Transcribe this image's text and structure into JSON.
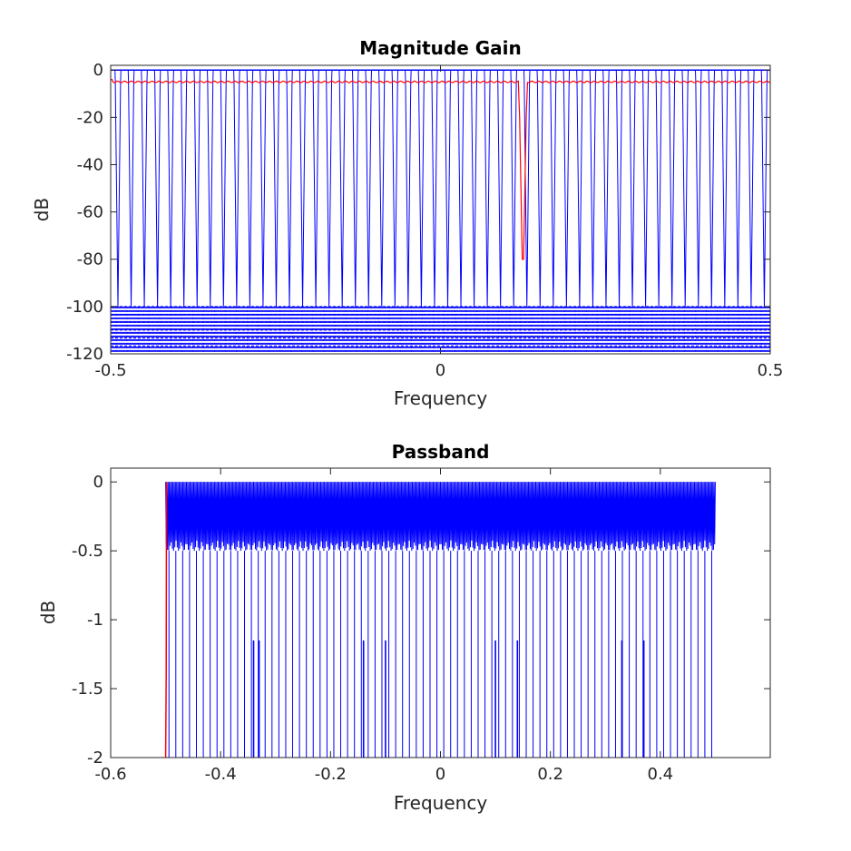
{
  "chart_data": [
    {
      "type": "line",
      "title": "Magnitude Gain",
      "xlabel": "Frequency",
      "ylabel": "dB",
      "xlim": [
        -0.5,
        0.5
      ],
      "ylim": [
        -120,
        2
      ],
      "xticks": [
        -0.5,
        0,
        0.5
      ],
      "xtick_labels": [
        "-0.5",
        "0",
        "0.5"
      ],
      "yticks": [
        0,
        -20,
        -40,
        -60,
        -80,
        -100,
        -120
      ],
      "ytick_labels": [
        "0",
        "-20",
        "-40",
        "-60",
        "-80",
        "-100",
        "-120"
      ],
      "grid": false,
      "series": [
        {
          "color": "#0000ff",
          "style": "comb of deep notches",
          "values": {
            "notch_frequencies": [
              -0.489,
              -0.469,
              -0.449,
              -0.429,
              -0.409,
              -0.389,
              -0.369,
              -0.349,
              -0.329,
              -0.309,
              -0.289,
              -0.269,
              -0.249,
              -0.229,
              -0.209,
              -0.189,
              -0.169,
              -0.149,
              -0.129,
              -0.109,
              -0.089,
              -0.069,
              -0.049,
              -0.029,
              -0.009,
              0.011,
              0.031,
              0.051,
              0.071,
              0.091,
              0.111,
              0.131,
              0.151,
              0.171,
              0.191,
              0.211,
              0.231,
              0.251,
              0.271,
              0.291,
              0.311,
              0.331,
              0.351,
              0.371,
              0.391,
              0.411,
              0.431,
              0.451,
              0.471,
              0.491
            ],
            "peak_db": 0,
            "notch_db": -100,
            "floor_range_db": [
              -120,
              -100
            ]
          }
        },
        {
          "color": "#ff0000",
          "style": "flat response with single notch",
          "values": {
            "level_db": -5,
            "start_db": -4,
            "notch_frequency": 0.125,
            "notch_db": -95
          }
        }
      ]
    },
    {
      "type": "line",
      "title": "Passband",
      "xlabel": "Frequency",
      "ylabel": "dB",
      "xlim": [
        -0.6,
        0.6
      ],
      "ylim": [
        -2,
        0.1
      ],
      "xticks": [
        -0.6,
        -0.4,
        -0.2,
        0,
        0.2,
        0.4
      ],
      "xtick_labels": [
        "-0.6",
        "-0.4",
        "-0.2",
        "0",
        "0.2",
        "0.4"
      ],
      "yticks": [
        0,
        -0.5,
        -1,
        -1.5,
        -2
      ],
      "ytick_labels": [
        "0",
        "-0.5",
        "-1",
        "-1.5",
        "-2"
      ],
      "grid": false,
      "series": [
        {
          "color": "#0000ff",
          "style": "dense ripple band with deep drops",
          "values": {
            "x_range": [
              -0.5,
              0.5
            ],
            "ripple_range_db": [
              -0.5,
              0
            ],
            "drop_spacing": 0.0125,
            "drop_db": -2
          }
        },
        {
          "color": "#ff0000",
          "style": "edge transition",
          "values": {
            "x": [
              -0.5,
              -0.499,
              -0.4985
            ],
            "y": [
              -2,
              -1.4,
              0
            ]
          }
        }
      ]
    }
  ]
}
